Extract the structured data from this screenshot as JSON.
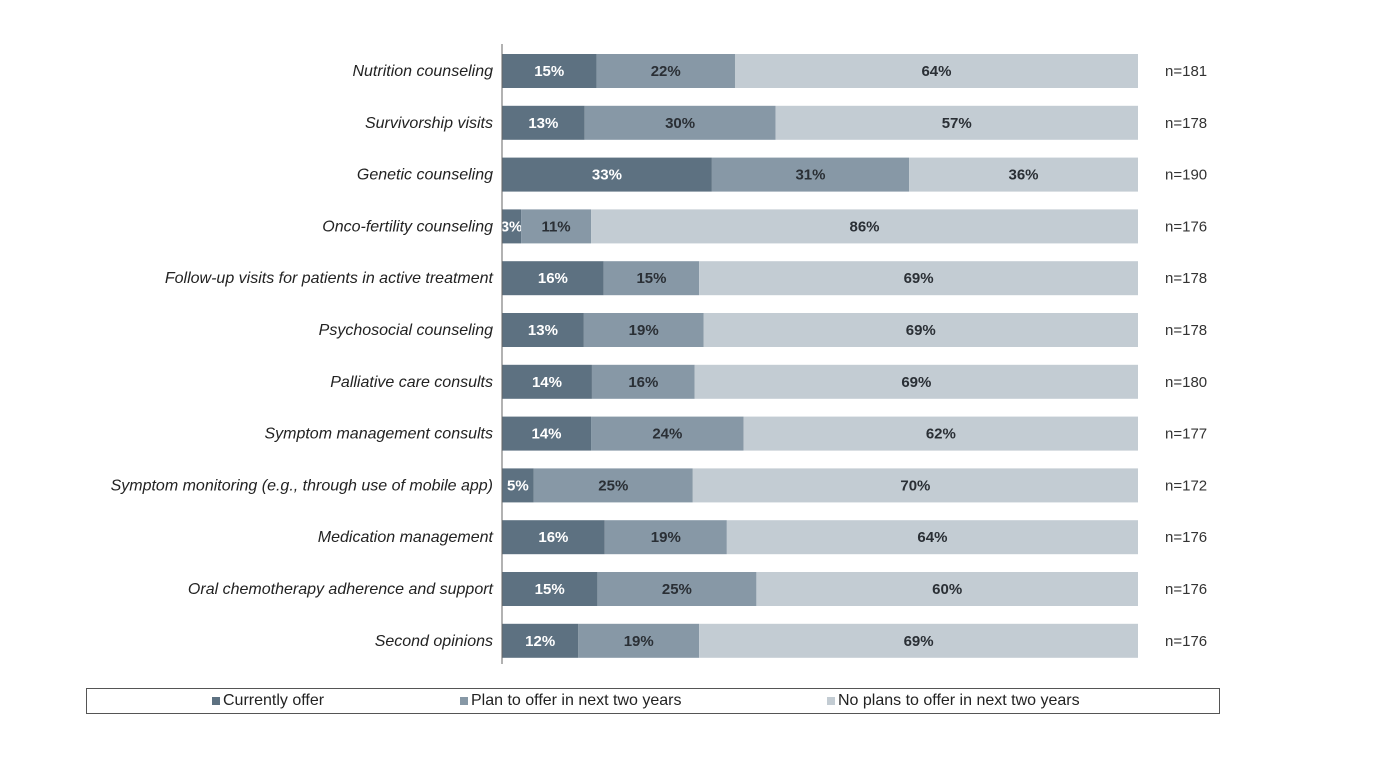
{
  "chart_data": {
    "type": "bar",
    "orientation": "horizontal",
    "stacked": true,
    "categories": [
      "Nutrition counseling",
      "Survivorship visits",
      "Genetic counseling",
      "Onco-fertility counseling",
      "Follow-up visits for patients in active treatment",
      "Psychosocial counseling",
      "Palliative care consults",
      "Symptom management consults",
      "Symptom monitoring (e.g., through use of mobile app)",
      "Medication management",
      "Oral chemotherapy adherence and support",
      "Second opinions"
    ],
    "n_labels": [
      "n=181",
      "n=178",
      "n=190",
      "n=176",
      "n=178",
      "n=178",
      "n=180",
      "n=177",
      "n=172",
      "n=176",
      "n=176",
      "n=176"
    ],
    "series": [
      {
        "name": "Currently offer",
        "color": "#5d7181",
        "label_color": "#ffffff",
        "values": [
          15,
          13,
          33,
          3,
          16,
          13,
          14,
          14,
          5,
          16,
          15,
          12
        ]
      },
      {
        "name": "Plan to offer in next two years",
        "color": "#8798a6",
        "label_color": "#2a2f35",
        "values": [
          22,
          30,
          31,
          11,
          15,
          19,
          16,
          24,
          25,
          19,
          25,
          19
        ]
      },
      {
        "name": "No plans to offer in next two years",
        "color": "#c3ccd3",
        "label_color": "#2a2f35",
        "values": [
          64,
          57,
          36,
          86,
          69,
          69,
          69,
          62,
          70,
          64,
          60,
          69
        ]
      }
    ],
    "value_suffix": "%",
    "xlim": [
      0,
      100
    ],
    "grid": false,
    "legend_position": "bottom"
  }
}
